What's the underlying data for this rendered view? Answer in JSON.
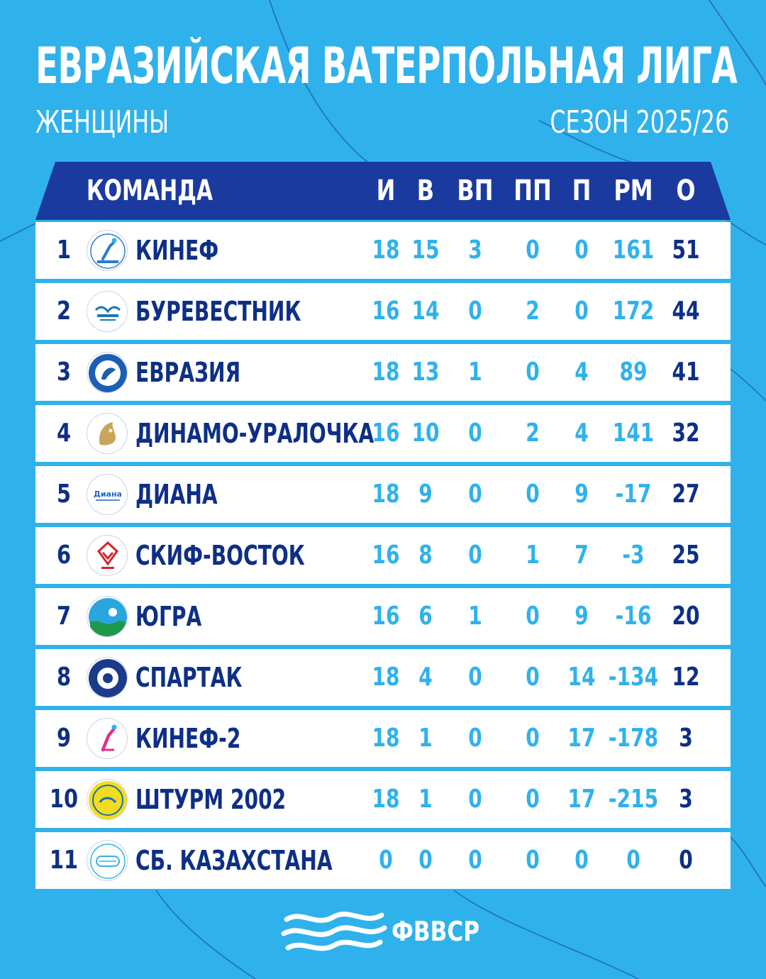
{
  "header": {
    "title": "ЕВРАЗИЙСКАЯ ВАТЕРПОЛЬНАЯ ЛИГА",
    "category": "ЖЕНЩИНЫ",
    "season": "СЕЗОН 2025/26"
  },
  "columns": {
    "team": "КОМАНДА",
    "games": "И",
    "wins": "В",
    "ot_wins": "ВП",
    "ot_losses": "ПП",
    "losses": "П",
    "goal_diff": "РМ",
    "points": "О"
  },
  "rows": [
    {
      "rank": "1",
      "team": "КИНЕФ",
      "games": "18",
      "wins": "15",
      "ot_wins": "3",
      "ot_losses": "0",
      "losses": "0",
      "goal_diff": "161",
      "points": "51",
      "logo": "kinef-logo",
      "logo_color": "#2a7ad1"
    },
    {
      "rank": "2",
      "team": "БУРЕВЕСТНИК",
      "games": "16",
      "wins": "14",
      "ot_wins": "0",
      "ot_losses": "2",
      "losses": "0",
      "goal_diff": "172",
      "points": "44",
      "logo": "burevestnik-logo",
      "logo_color": "#1c76b8"
    },
    {
      "rank": "3",
      "team": "ЕВРАЗИЯ",
      "games": "18",
      "wins": "13",
      "ot_wins": "1",
      "ot_losses": "0",
      "losses": "4",
      "goal_diff": "89",
      "points": "41",
      "logo": "evrazia-logo",
      "logo_color": "#1a5fb5"
    },
    {
      "rank": "4",
      "team": "ДИНАМО-УРАЛОЧКА",
      "games": "16",
      "wins": "10",
      "ot_wins": "0",
      "ot_losses": "2",
      "losses": "4",
      "goal_diff": "141",
      "points": "32",
      "logo": "dinamo-uralochka-logo",
      "logo_color": "#c9a45a"
    },
    {
      "rank": "5",
      "team": "ДИАНА",
      "games": "18",
      "wins": "9",
      "ot_wins": "0",
      "ot_losses": "0",
      "losses": "9",
      "goal_diff": "-17",
      "points": "27",
      "logo": "diana-logo",
      "logo_color": "#2166c4"
    },
    {
      "rank": "6",
      "team": "СКИФ-ВОСТОК",
      "games": "16",
      "wins": "8",
      "ot_wins": "0",
      "ot_losses": "1",
      "losses": "7",
      "goal_diff": "-3",
      "points": "25",
      "logo": "skif-vostok-logo",
      "logo_color": "#d8232a"
    },
    {
      "rank": "7",
      "team": "ЮГРА",
      "games": "16",
      "wins": "6",
      "ot_wins": "1",
      "ot_losses": "0",
      "losses": "9",
      "goal_diff": "-16",
      "points": "20",
      "logo": "yugra-logo",
      "logo_color": "#2aa6df"
    },
    {
      "rank": "8",
      "team": "СПАРТАК",
      "games": "18",
      "wins": "4",
      "ot_wins": "0",
      "ot_losses": "0",
      "losses": "14",
      "goal_diff": "-134",
      "points": "12",
      "logo": "spartak-logo",
      "logo_color": "#1b3a8a"
    },
    {
      "rank": "9",
      "team": "КИНЕФ-2",
      "games": "18",
      "wins": "1",
      "ot_wins": "0",
      "ot_losses": "0",
      "losses": "17",
      "goal_diff": "-178",
      "points": "3",
      "logo": "kinef-2-logo",
      "logo_color": "#e0308a"
    },
    {
      "rank": "10",
      "team": "ШТУРМ 2002",
      "games": "18",
      "wins": "1",
      "ot_wins": "0",
      "ot_losses": "0",
      "losses": "17",
      "goal_diff": "-215",
      "points": "3",
      "logo": "shturm-2002-logo",
      "logo_color": "#f2dc1f"
    },
    {
      "rank": "11",
      "team": "СБ. КАЗАХСТАНА",
      "games": "0",
      "wins": "0",
      "ot_wins": "0",
      "ot_losses": "0",
      "losses": "0",
      "goal_diff": "0",
      "points": "0",
      "logo": "qazaq-aquatics-logo",
      "logo_color": "#2fb2ec"
    }
  ],
  "footer": {
    "brand": "ФВВСР",
    "brand_icon": "waves-icon"
  },
  "colors": {
    "background": "#2fb2ec",
    "header_bar": "#1a3aa0",
    "team_text": "#0e2f86",
    "stat_text": "#2fb2ec"
  }
}
